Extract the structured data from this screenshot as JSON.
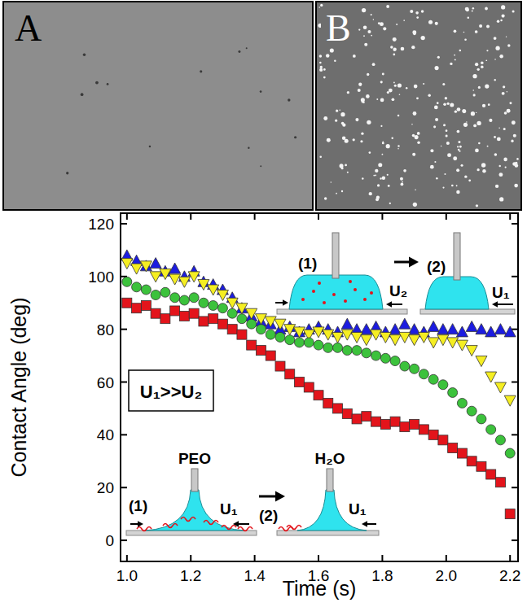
{
  "panels": {
    "labels": [
      "A",
      "B"
    ]
  },
  "chart_data": {
    "type": "scatter",
    "x_label": "Time (s)",
    "y_label": "Contact Angle (deg)",
    "x": [
      1.0,
      1.03,
      1.06,
      1.09,
      1.12,
      1.15,
      1.18,
      1.21,
      1.24,
      1.27,
      1.3,
      1.33,
      1.36,
      1.39,
      1.42,
      1.45,
      1.48,
      1.51,
      1.54,
      1.57,
      1.6,
      1.63,
      1.66,
      1.69,
      1.72,
      1.75,
      1.78,
      1.81,
      1.84,
      1.87,
      1.9,
      1.93,
      1.96,
      1.99,
      2.02,
      2.05,
      2.08,
      2.11,
      2.14,
      2.17,
      2.2
    ],
    "xlim": [
      0.98,
      2.225
    ],
    "ylim": [
      -8,
      124
    ],
    "xticks": [
      {
        "value": 1,
        "label": "1.0"
      },
      1.2,
      1.4,
      1.6,
      1.8,
      {
        "value": 2,
        "label": "2.0"
      },
      2.2
    ],
    "yticks": [
      0,
      20,
      40,
      60,
      80,
      100,
      120
    ],
    "grid": false,
    "series": [
      {
        "color": "#e3141b",
        "marker": "square",
        "values": [
          90,
          88,
          89,
          86,
          84,
          87,
          85,
          86,
          83,
          84,
          82,
          80,
          78,
          74,
          72,
          70,
          66,
          63,
          60,
          58,
          55,
          52,
          50,
          48,
          46,
          47,
          45,
          44,
          45,
          43,
          44,
          42,
          40,
          38,
          35,
          33,
          30,
          28,
          25,
          22,
          10
        ]
      },
      {
        "color": "#3cc23c",
        "marker": "circle",
        "values": [
          98,
          96,
          95,
          93,
          94,
          92,
          91,
          92,
          90,
          89,
          88,
          86,
          84,
          82,
          80,
          78,
          77,
          76,
          75,
          75,
          74,
          73,
          73,
          72,
          72,
          71,
          70,
          69,
          68,
          66,
          65,
          63,
          61,
          59,
          56,
          52,
          49,
          46,
          42,
          38,
          33
        ]
      },
      {
        "color": "#1c1ce0",
        "marker": "triangle-up",
        "values": [
          108,
          106,
          104,
          105,
          102,
          103,
          100,
          102,
          98,
          97,
          95,
          92,
          88,
          85,
          83,
          82,
          80,
          81,
          79,
          80,
          81,
          80,
          79,
          82,
          80,
          80,
          81,
          79,
          80,
          82,
          80,
          79,
          81,
          80,
          80,
          79,
          81,
          80,
          79,
          80,
          79
        ]
      },
      {
        "color": "#f5ee22",
        "marker": "triangle-down",
        "values": [
          105,
          103,
          104,
          100,
          101,
          99,
          98,
          100,
          97,
          95,
          93,
          90,
          88,
          86,
          84,
          83,
          82,
          80,
          79,
          78,
          79,
          78,
          77,
          78,
          77,
          76,
          78,
          77,
          76,
          77,
          76,
          77,
          75,
          76,
          75,
          74,
          72,
          68,
          62,
          58,
          53
        ]
      }
    ],
    "annotations": {
      "ratio": "U₁>>U₂",
      "top_inset": {
        "steps": [
          "(1)",
          "(2)"
        ],
        "speeds": [
          "U₂",
          "U₁"
        ]
      },
      "bottom_inset": {
        "steps": [
          "(1)",
          "(2)"
        ],
        "liquids": [
          "PEO",
          "H₂O"
        ],
        "speeds": [
          "U₁",
          "U₁"
        ]
      }
    }
  }
}
